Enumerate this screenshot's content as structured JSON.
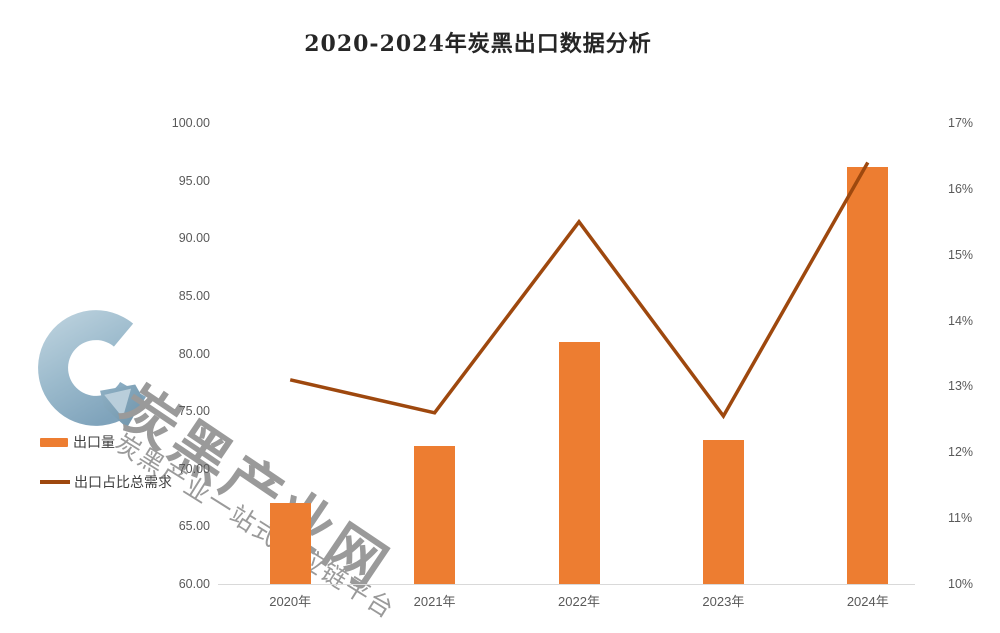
{
  "title": "2020-2024年炭黑出口数据分析",
  "legend": {
    "bar_label": "出口量",
    "line_label": "出口占比总需求"
  },
  "watermark": {
    "brand_large": "炭黑产业网",
    "brand_small": "炭黑产业一站式供应链平台",
    "logo": "c-arrow-logo"
  },
  "chart_data": {
    "type": "bar",
    "subtype": "combo-bar-line",
    "title": "2020-2024年炭黑出口数据分析",
    "categories": [
      "2020年",
      "2021年",
      "2022年",
      "2023年",
      "2024年"
    ],
    "series": [
      {
        "name": "出口量",
        "type": "bar",
        "axis": "left",
        "color": "#ED7D31",
        "values": [
          67,
          72,
          81,
          72.5,
          96.2
        ]
      },
      {
        "name": "出口占比总需求",
        "type": "line",
        "axis": "right",
        "color": "#9E480E",
        "values": [
          13.1,
          12.6,
          15.5,
          12.55,
          16.4
        ]
      }
    ],
    "left_axis": {
      "min": 60,
      "max": 100,
      "step": 5,
      "ticks": [
        "100.00",
        "95.00",
        "90.00",
        "85.00",
        "80.00",
        "75.00",
        "70.00",
        "65.00",
        "60.00"
      ]
    },
    "right_axis": {
      "min": 10,
      "max": 17,
      "step": 1,
      "ticks": [
        "17%",
        "16%",
        "15%",
        "14%",
        "13%",
        "12%",
        "11%",
        "10%"
      ]
    },
    "grid": false,
    "legend_position": "left-middle",
    "xlabel": "",
    "ylabel": ""
  },
  "colors": {
    "bar": "#ED7D31",
    "line": "#9E480E",
    "axis_line": "#D9D9D9",
    "tick_text": "#595959",
    "title_text": "#262626",
    "watermark_text": "#9A9A9A",
    "logo_blue_light": "#BCD2DF",
    "logo_blue_dark": "#85A8BF"
  }
}
